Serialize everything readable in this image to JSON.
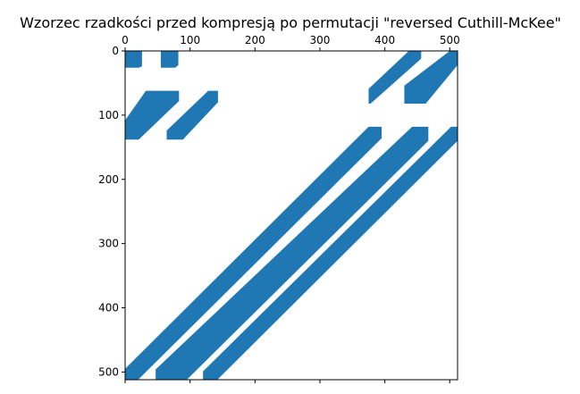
{
  "chart_data": {
    "type": "heatmap",
    "title": "Wzorzec rzadkości przed kompresją po permutacji \"reversed Cuthill-McKee\"",
    "xlabel": "",
    "ylabel": "",
    "xlim": [
      0,
      512
    ],
    "ylim": [
      512,
      0
    ],
    "xticks": [
      0,
      100,
      200,
      300,
      400,
      500
    ],
    "yticks": [
      0,
      100,
      200,
      300,
      400,
      500
    ],
    "xtick_labels": [
      "0",
      "100",
      "200",
      "300",
      "400",
      "500"
    ],
    "ytick_labels": [
      "0",
      "100",
      "200",
      "300",
      "400",
      "500"
    ],
    "x_ticks_position": "top",
    "grid": false,
    "color": "#1f77b4",
    "nonzero_regions": [
      {
        "name": "block-a",
        "points": [
          [
            0,
            0
          ],
          [
            26,
            0
          ],
          [
            26,
            24
          ],
          [
            21,
            26
          ],
          [
            0,
            26
          ]
        ]
      },
      {
        "name": "block-b",
        "points": [
          [
            55,
            0
          ],
          [
            82,
            0
          ],
          [
            82,
            22
          ],
          [
            77,
            26
          ],
          [
            55,
            26
          ]
        ]
      },
      {
        "name": "band-left-upper",
        "points": [
          [
            32,
            62
          ],
          [
            83,
            62
          ],
          [
            83,
            78
          ],
          [
            21,
            138
          ],
          [
            0,
            138
          ],
          [
            0,
            108
          ]
        ]
      },
      {
        "name": "band-mid-upper",
        "points": [
          [
            128,
            62
          ],
          [
            143,
            62
          ],
          [
            143,
            80
          ],
          [
            89,
            138
          ],
          [
            64,
            138
          ],
          [
            64,
            124
          ]
        ]
      },
      {
        "name": "band-right-upper-a",
        "points": [
          [
            437,
            0
          ],
          [
            456,
            0
          ],
          [
            456,
            12
          ],
          [
            378,
            82
          ],
          [
            375,
            82
          ],
          [
            375,
            59
          ]
        ]
      },
      {
        "name": "band-right-upper-b",
        "points": [
          [
            500,
            0
          ],
          [
            512,
            0
          ],
          [
            512,
            22
          ],
          [
            463,
            82
          ],
          [
            430,
            82
          ],
          [
            430,
            54
          ]
        ]
      },
      {
        "name": "band-diag-1",
        "points": [
          [
            375,
            118
          ],
          [
            395,
            118
          ],
          [
            395,
            136
          ],
          [
            20,
            512
          ],
          [
            0,
            512
          ],
          [
            0,
            495
          ]
        ]
      },
      {
        "name": "band-diag-2",
        "points": [
          [
            442,
            118
          ],
          [
            467,
            118
          ],
          [
            467,
            140
          ],
          [
            95,
            512
          ],
          [
            47,
            512
          ],
          [
            47,
            496
          ]
        ]
      },
      {
        "name": "band-diag-3",
        "points": [
          [
            502,
            118
          ],
          [
            512,
            118
          ],
          [
            512,
            140
          ],
          [
            142,
            512
          ],
          [
            120,
            512
          ],
          [
            120,
            499
          ]
        ]
      }
    ]
  }
}
